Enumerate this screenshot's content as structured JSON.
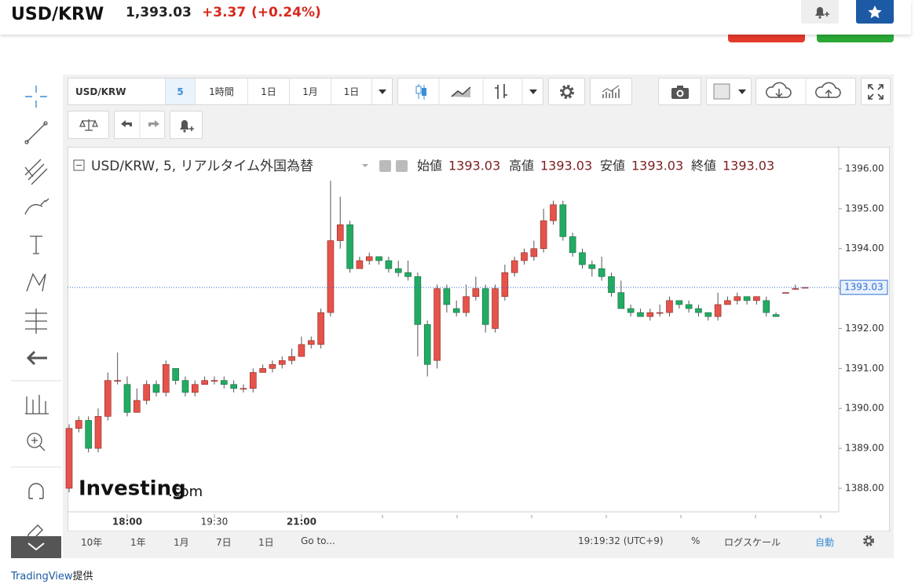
{
  "header": {
    "symbol": "USD/KRW",
    "price": "1,393.03",
    "change": "+3.37",
    "change_percent": "(+0.24%)"
  },
  "toolbar": {
    "symbol": "USD/KRW",
    "interval": "5",
    "ranges": [
      "1時間",
      "1日",
      "1月",
      "1日"
    ]
  },
  "chart_data": {
    "type": "candlestick",
    "title": "USD/KRW, 5, リアルタイム外国為替",
    "legend_labels": [
      "始値",
      "高値",
      "安値",
      "終値"
    ],
    "watermark": "Investing",
    "watermark_suffix": ".com",
    "up_color": "#e5534b",
    "down_color": "#22ab63",
    "last_price_color": "#2f6fd6",
    "grid": false,
    "categories": [
      null,
      null,
      null,
      null,
      null,
      null,
      "18:00",
      null,
      null,
      null,
      null,
      null,
      null,
      null,
      null,
      "19:30",
      null,
      null,
      null,
      null,
      null,
      null,
      null,
      null,
      "21:00",
      null,
      null,
      null,
      null,
      null,
      null,
      null,
      null,
      null,
      null,
      null,
      null,
      null,
      null,
      null,
      null,
      null,
      null,
      null,
      null,
      null,
      null,
      null,
      null,
      null,
      null,
      null,
      null,
      null,
      null,
      null,
      null,
      null,
      null,
      null,
      null,
      null,
      null,
      null,
      null,
      null,
      null,
      null,
      null,
      null,
      null,
      null,
      null,
      null,
      null,
      null,
      null
    ],
    "open": [
      1388.0,
      1389.5,
      1389.7,
      1389.0,
      1389.8,
      1390.7,
      1390.6,
      1389.9,
      1390.2,
      1390.6,
      1390.4,
      1391.0,
      1390.7,
      1390.4,
      1390.6,
      1390.7,
      1390.7,
      1390.6,
      1390.5,
      1390.5,
      1390.9,
      1391.0,
      1391.1,
      1391.2,
      1391.3,
      1391.6,
      1391.6,
      1392.4,
      1394.2,
      1394.6,
      1393.5,
      1393.7,
      1393.8,
      1393.7,
      1393.5,
      1393.4,
      1393.3,
      1392.1,
      1391.2,
      1393.0,
      1392.5,
      1392.4,
      1392.8,
      1393.0,
      1392.0,
      1392.8,
      1393.4,
      1393.7,
      1393.8,
      1394.0,
      1394.7,
      1395.1,
      1394.3,
      1393.9,
      1393.6,
      1393.5,
      1393.3,
      1392.9,
      1392.5,
      1392.4,
      1392.3,
      1392.4,
      1392.4,
      1392.7,
      1392.6,
      1392.5,
      1392.4,
      1392.3,
      1392.6,
      1392.7,
      1392.8,
      1392.7,
      1392.7,
      1392.35,
      1392.9,
      1393.0,
      1393.03
    ],
    "high": [
      1389.6,
      1389.8,
      1389.8,
      1390.0,
      1390.9,
      1391.4,
      1390.8,
      1390.5,
      1390.7,
      1390.7,
      1391.2,
      1391.0,
      1390.8,
      1390.7,
      1390.8,
      1390.8,
      1390.8,
      1390.7,
      1390.6,
      1391.0,
      1391.1,
      1391.2,
      1391.3,
      1391.5,
      1391.8,
      1391.8,
      1392.5,
      1395.7,
      1395.3,
      1394.7,
      1393.8,
      1393.9,
      1393.8,
      1393.8,
      1393.7,
      1393.7,
      1393.4,
      1392.2,
      1393.1,
      1393.1,
      1392.7,
      1393.1,
      1393.3,
      1393.1,
      1393.1,
      1393.6,
      1393.8,
      1394.0,
      1394.2,
      1395.0,
      1395.2,
      1395.2,
      1394.4,
      1394.0,
      1393.7,
      1393.8,
      1393.4,
      1393.2,
      1392.6,
      1392.5,
      1392.5,
      1392.6,
      1392.8,
      1392.7,
      1392.7,
      1392.6,
      1392.4,
      1392.9,
      1392.8,
      1392.9,
      1392.8,
      1392.8,
      1392.8,
      1392.4,
      1392.9,
      1393.1,
      1393.03
    ],
    "low": [
      1387.9,
      1389.4,
      1388.9,
      1388.9,
      1389.7,
      1390.6,
      1389.8,
      1389.9,
      1390.1,
      1390.3,
      1390.3,
      1390.6,
      1390.3,
      1390.3,
      1390.6,
      1390.6,
      1390.5,
      1390.4,
      1390.4,
      1390.4,
      1390.9,
      1390.9,
      1391.0,
      1391.1,
      1391.3,
      1391.5,
      1391.5,
      1392.3,
      1394.0,
      1393.4,
      1393.5,
      1393.6,
      1393.6,
      1393.4,
      1393.3,
      1393.2,
      1391.3,
      1390.8,
      1391.0,
      1392.4,
      1392.3,
      1392.3,
      1392.7,
      1391.9,
      1391.9,
      1392.7,
      1393.3,
      1393.6,
      1393.7,
      1393.9,
      1394.6,
      1394.2,
      1393.8,
      1393.5,
      1393.3,
      1393.2,
      1392.8,
      1392.5,
      1392.3,
      1392.3,
      1392.2,
      1392.3,
      1392.3,
      1392.5,
      1392.4,
      1392.3,
      1392.2,
      1392.2,
      1392.6,
      1392.6,
      1392.6,
      1392.6,
      1392.3,
      1392.3,
      1392.9,
      1393.0,
      1393.03
    ],
    "close": [
      1389.5,
      1389.7,
      1389.0,
      1389.8,
      1390.7,
      1390.7,
      1389.9,
      1390.2,
      1390.6,
      1390.4,
      1391.1,
      1390.7,
      1390.4,
      1390.6,
      1390.7,
      1390.7,
      1390.6,
      1390.5,
      1390.5,
      1390.9,
      1391.0,
      1391.1,
      1391.2,
      1391.3,
      1391.6,
      1391.7,
      1392.4,
      1394.2,
      1394.6,
      1393.5,
      1393.7,
      1393.8,
      1393.7,
      1393.5,
      1393.4,
      1393.3,
      1392.1,
      1391.1,
      1393.0,
      1392.6,
      1392.4,
      1392.8,
      1393.0,
      1392.1,
      1393.0,
      1393.4,
      1393.7,
      1393.9,
      1394.0,
      1394.7,
      1395.1,
      1394.3,
      1393.9,
      1393.6,
      1393.5,
      1393.3,
      1392.9,
      1392.5,
      1392.4,
      1392.3,
      1392.4,
      1392.4,
      1392.7,
      1392.6,
      1392.5,
      1392.4,
      1392.3,
      1392.6,
      1392.7,
      1392.8,
      1392.7,
      1392.8,
      1392.4,
      1392.3,
      1392.9,
      1393.0,
      1393.03
    ],
    "ylim": [
      1387.41,
      1396.55
    ],
    "yticks": [
      {
        "value": 1388,
        "label": "1388.00"
      },
      {
        "value": 1389,
        "label": "1389.00"
      },
      {
        "value": 1390,
        "label": "1390.00"
      },
      {
        "value": 1391,
        "label": "1391.00"
      },
      {
        "value": 1392,
        "label": "1392.00"
      },
      {
        "value": 1393,
        "label": "1393.00"
      },
      {
        "value": 1394,
        "label": "1394.00"
      },
      {
        "value": 1395,
        "label": "1395.00"
      },
      {
        "value": 1396,
        "label": "1396.00"
      }
    ]
  },
  "bottom_bar": {
    "ranges": [
      "10年",
      "1年",
      "1月",
      "7日",
      "1日"
    ],
    "goto": "Go to...",
    "time": "19:19:32 (UTC+9)",
    "percent": "%",
    "log_scale": "ログスケール",
    "auto": "自動"
  },
  "footer": {
    "credit_link": "TradingView",
    "credit_suffix": "提供"
  }
}
